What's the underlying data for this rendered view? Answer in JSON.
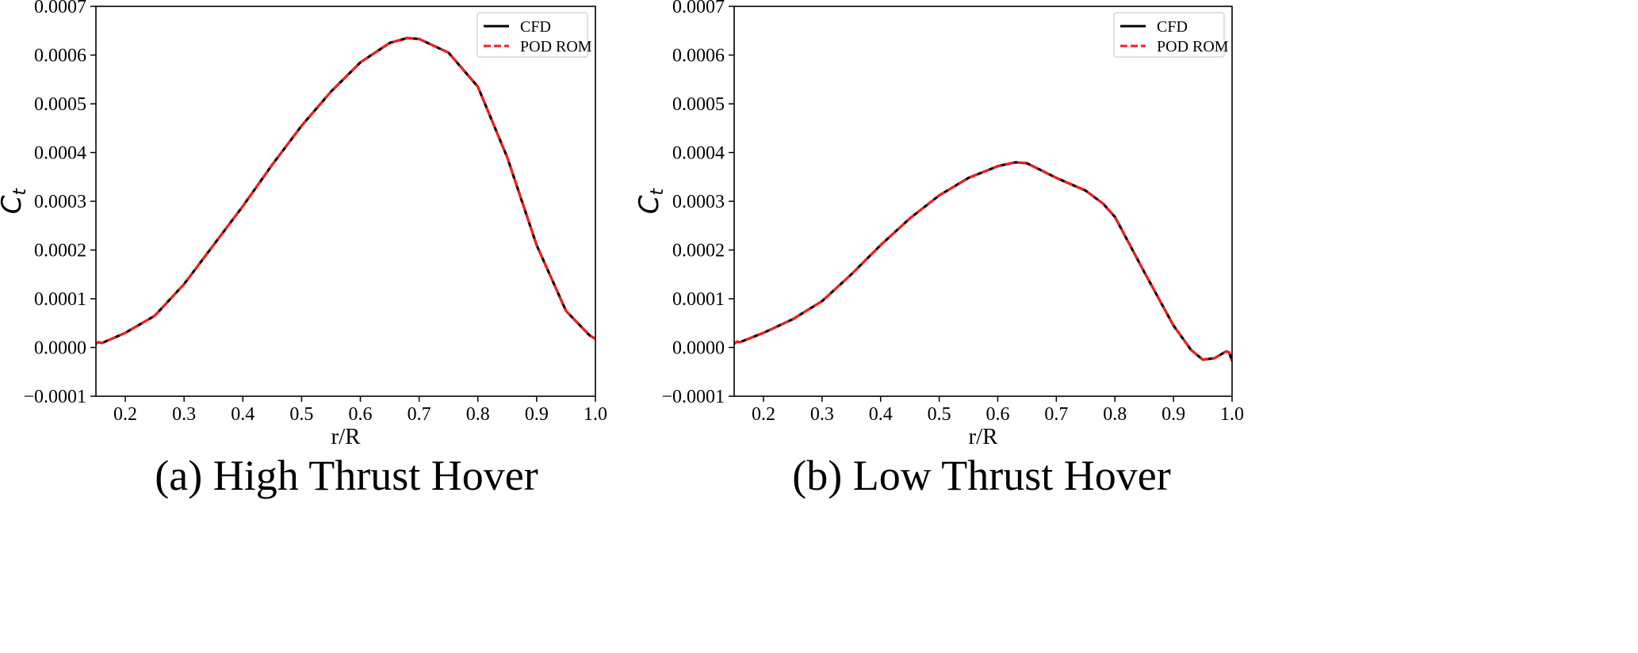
{
  "colors": {
    "cfd": "#000000",
    "pod_rom": "#ff1a1a",
    "axes": "#000000",
    "background": "#ffffff"
  },
  "chart_data": [
    {
      "type": "line",
      "caption": "(a) High Thrust Hover",
      "xlabel": "r/R",
      "ylabel": {
        "base": "C",
        "subscript": "t"
      },
      "xlim": [
        0.15,
        1.0
      ],
      "ylim": [
        -0.0001,
        0.0007
      ],
      "xticks": [
        0.2,
        0.3,
        0.4,
        0.5,
        0.6,
        0.7,
        0.8,
        0.9,
        1.0
      ],
      "xtick_labels": [
        "0.2",
        "0.3",
        "0.4",
        "0.5",
        "0.6",
        "0.7",
        "0.8",
        "0.9",
        "1.0"
      ],
      "yticks": [
        -0.0001,
        0.0,
        0.0001,
        0.0002,
        0.0003,
        0.0004,
        0.0005,
        0.0006,
        0.0007
      ],
      "ytick_labels": [
        "−0.0001",
        "0.0000",
        "0.0001",
        "0.0002",
        "0.0003",
        "0.0004",
        "0.0005",
        "0.0006",
        "0.0007"
      ],
      "grid": false,
      "legend": {
        "position": "top-right",
        "entries": [
          "CFD",
          "POD ROM"
        ]
      },
      "series": [
        {
          "name": "CFD",
          "style": "solid",
          "x": [
            0.15,
            0.155,
            0.16,
            0.2,
            0.25,
            0.3,
            0.35,
            0.4,
            0.45,
            0.5,
            0.55,
            0.6,
            0.65,
            0.68,
            0.7,
            0.75,
            0.8,
            0.85,
            0.9,
            0.95,
            0.99,
            1.0
          ],
          "y": [
            8e-06,
            1.1e-05,
            9e-06,
            3e-05,
            6.5e-05,
            0.00013,
            0.00021,
            0.00029,
            0.000375,
            0.000455,
            0.000525,
            0.000585,
            0.000625,
            0.000635,
            0.000633,
            0.000605,
            0.000535,
            0.00039,
            0.00021,
            7.5e-05,
            2.5e-05,
            1.8e-05
          ]
        },
        {
          "name": "POD ROM",
          "style": "dashed",
          "x": [
            0.15,
            0.155,
            0.16,
            0.2,
            0.25,
            0.3,
            0.35,
            0.4,
            0.45,
            0.5,
            0.55,
            0.6,
            0.65,
            0.68,
            0.7,
            0.75,
            0.8,
            0.85,
            0.9,
            0.95,
            0.99,
            1.0
          ],
          "y": [
            8e-06,
            1.1e-05,
            9e-06,
            3e-05,
            6.5e-05,
            0.00013,
            0.00021,
            0.00029,
            0.000375,
            0.000455,
            0.000525,
            0.000585,
            0.000625,
            0.000635,
            0.000633,
            0.000605,
            0.000535,
            0.00039,
            0.00021,
            7.5e-05,
            2.5e-05,
            1.8e-05
          ]
        }
      ]
    },
    {
      "type": "line",
      "caption": "(b) Low Thrust Hover",
      "xlabel": "r/R",
      "ylabel": {
        "base": "C",
        "subscript": "t"
      },
      "xlim": [
        0.15,
        1.0
      ],
      "ylim": [
        -0.0001,
        0.0007
      ],
      "xticks": [
        0.2,
        0.3,
        0.4,
        0.5,
        0.6,
        0.7,
        0.8,
        0.9,
        1.0
      ],
      "xtick_labels": [
        "0.2",
        "0.3",
        "0.4",
        "0.5",
        "0.6",
        "0.7",
        "0.8",
        "0.9",
        "1.0"
      ],
      "yticks": [
        -0.0001,
        0.0,
        0.0001,
        0.0002,
        0.0003,
        0.0004,
        0.0005,
        0.0006,
        0.0007
      ],
      "ytick_labels": [
        "−0.0001",
        "0.0000",
        "0.0001",
        "0.0002",
        "0.0003",
        "0.0004",
        "0.0005",
        "0.0006",
        "0.0007"
      ],
      "grid": false,
      "legend": {
        "position": "top-right",
        "entries": [
          "CFD",
          "POD ROM"
        ]
      },
      "series": [
        {
          "name": "CFD",
          "style": "solid",
          "x": [
            0.15,
            0.155,
            0.16,
            0.2,
            0.25,
            0.3,
            0.35,
            0.4,
            0.45,
            0.5,
            0.55,
            0.6,
            0.63,
            0.65,
            0.7,
            0.75,
            0.78,
            0.8,
            0.85,
            0.9,
            0.93,
            0.95,
            0.97,
            0.99,
            0.995,
            1.0
          ],
          "y": [
            8e-06,
            1.2e-05,
            1.1e-05,
            3e-05,
            5.8e-05,
            9.5e-05,
            0.00015,
            0.00021,
            0.000265,
            0.000312,
            0.000348,
            0.000372,
            0.00038,
            0.000378,
            0.000348,
            0.000322,
            0.000295,
            0.000268,
            0.000155,
            4.5e-05,
            -5e-06,
            -2.5e-05,
            -2.2e-05,
            -8e-06,
            -1e-05,
            -2.8e-05
          ]
        },
        {
          "name": "POD ROM",
          "style": "dashed",
          "x": [
            0.15,
            0.155,
            0.16,
            0.2,
            0.25,
            0.3,
            0.35,
            0.4,
            0.45,
            0.5,
            0.55,
            0.6,
            0.63,
            0.65,
            0.7,
            0.75,
            0.78,
            0.8,
            0.85,
            0.9,
            0.93,
            0.95,
            0.97,
            0.99,
            0.995,
            1.0
          ],
          "y": [
            8e-06,
            1.2e-05,
            1.1e-05,
            3e-05,
            5.8e-05,
            9.5e-05,
            0.00015,
            0.00021,
            0.000265,
            0.000312,
            0.000348,
            0.000372,
            0.00038,
            0.000378,
            0.000348,
            0.000322,
            0.000295,
            0.000268,
            0.000155,
            4.5e-05,
            -5e-06,
            -2.5e-05,
            -2.2e-05,
            -8e-06,
            -1e-05,
            -2.8e-05
          ]
        }
      ]
    }
  ]
}
